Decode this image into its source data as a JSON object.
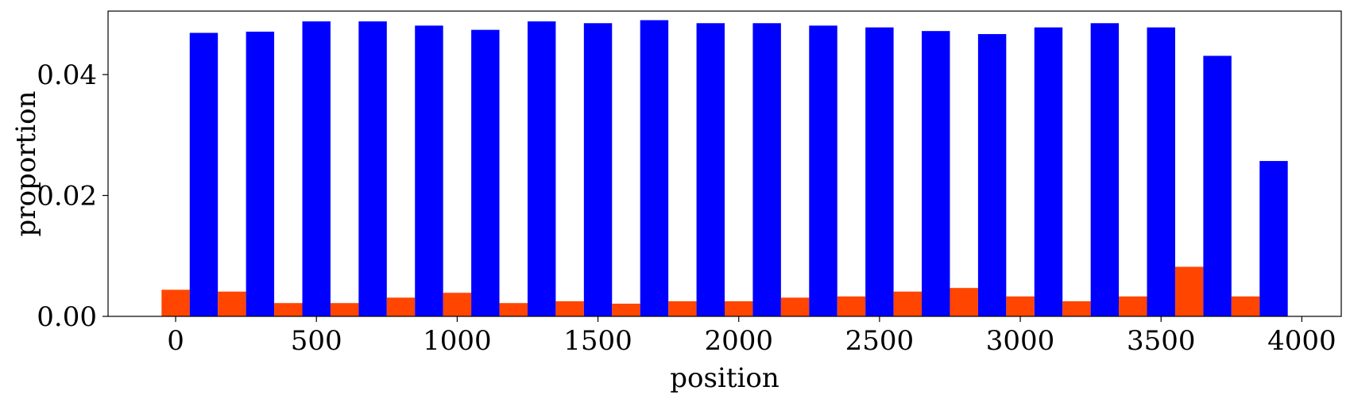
{
  "chart_data": {
    "type": "bar",
    "xlabel": "position",
    "ylabel": "proportion",
    "xlim": [
      -240,
      4140
    ],
    "ylim": [
      0,
      0.0505
    ],
    "x_ticks": [
      0,
      500,
      1000,
      1500,
      2000,
      2500,
      3000,
      3500,
      4000
    ],
    "x_tick_labels": [
      "0",
      "500",
      "1000",
      "1500",
      "2000",
      "2500",
      "3000",
      "3500",
      "4000"
    ],
    "y_ticks": [
      0.0,
      0.02,
      0.04
    ],
    "y_tick_labels": [
      "0.00",
      "0.02",
      "0.04"
    ],
    "bin_width": 200,
    "bin_starts": [
      -50,
      150,
      350,
      550,
      750,
      950,
      1150,
      1350,
      1550,
      1750,
      1950,
      2150,
      2350,
      2550,
      2750,
      2950,
      3150,
      3350,
      3550,
      3750
    ],
    "grid": false,
    "series": [
      {
        "color": "#ff4500",
        "values": [
          0.0044,
          0.0041,
          0.0022,
          0.0022,
          0.0031,
          0.0039,
          0.0022,
          0.0025,
          0.0021,
          0.0025,
          0.0025,
          0.0031,
          0.0033,
          0.0041,
          0.0047,
          0.0033,
          0.0025,
          0.0033,
          0.0082,
          0.0033
        ]
      },
      {
        "color": "#0000ff",
        "values": [
          0.0469,
          0.0471,
          0.0488,
          0.0488,
          0.0481,
          0.0474,
          0.0488,
          0.0485,
          0.049,
          0.0485,
          0.0485,
          0.0481,
          0.0478,
          0.0472,
          0.0467,
          0.0478,
          0.0485,
          0.0478,
          0.0431,
          0.0257
        ]
      }
    ]
  }
}
